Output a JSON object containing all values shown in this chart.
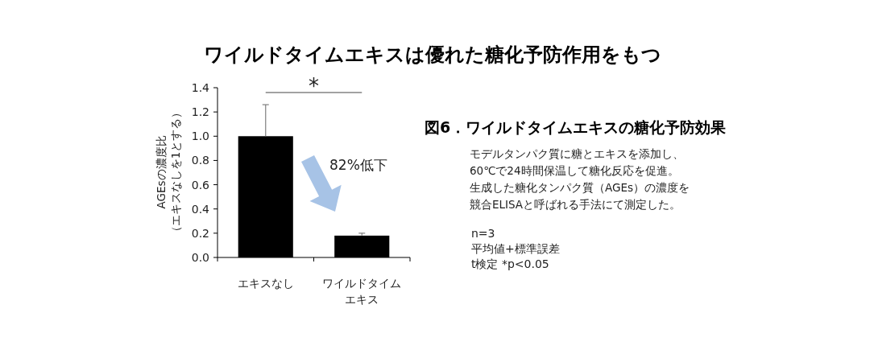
{
  "chart_data": {
    "type": "bar",
    "title": "ワイルドタイムエキスは優れた糖化予防作用をもつ",
    "ylabel": "AGEsの濃度比（エキスなしを1とする）",
    "categories": [
      "エキスなし",
      "ワイルドタイムエキス"
    ],
    "values": [
      1.0,
      0.18
    ],
    "color": "#000000",
    "errors": [
      [
        1.0,
        1.26
      ],
      [
        0.18,
        0.2
      ]
    ],
    "ylim": [
      0,
      1.4
    ],
    "yticks": [
      {
        "value": 0,
        "label": "0.0"
      },
      0.2,
      0.4,
      0.6,
      0.8,
      {
        "value": 1,
        "label": "1.0"
      },
      1.2,
      1.4
    ],
    "annotations": [
      "*",
      "82%低下",
      "図6．ワイルドタイムエキスの糖化予防効果",
      "モデルタンパク質に糖とエキスを添加し、60℃で24時間保温して糖化反応を促進。生成した糖化タンパク質（AGEs）の濃度を競合ELISAと呼ばれる手法にて測定した。",
      "n=3",
      "平均値+標準誤差",
      "t検定 *p<0.05"
    ]
  }
}
